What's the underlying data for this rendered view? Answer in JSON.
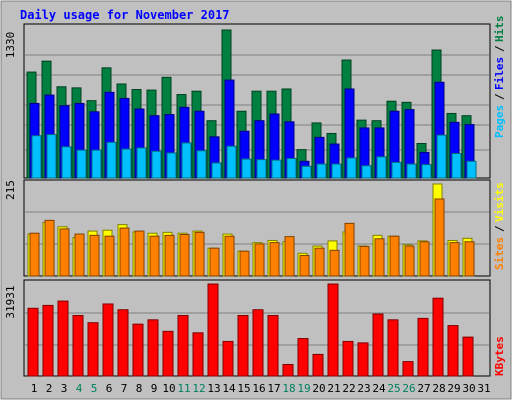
{
  "colors": {
    "frame_bg": "#c0c0c0",
    "title": "#0000ff",
    "hits": "#008040",
    "files": "#0000ff",
    "pages": "#00c0ff",
    "visits": "#ffff00",
    "sites": "#ff8000",
    "kbytes": "#ff0000",
    "weekend_day": "#00805c",
    "weekday": "#000000"
  },
  "chart_data": {
    "type": "bar",
    "title": "Daily usage for November 2017",
    "x": [
      "1",
      "2",
      "3",
      "4",
      "5",
      "6",
      "7",
      "8",
      "9",
      "10",
      "11",
      "12",
      "13",
      "14",
      "15",
      "16",
      "17",
      "18",
      "19",
      "20",
      "21",
      "22",
      "23",
      "24",
      "25",
      "26",
      "27",
      "28",
      "29",
      "30",
      "31"
    ],
    "weekend_days": [
      4,
      5,
      11,
      12,
      18,
      19,
      25,
      26
    ],
    "panels": [
      {
        "name": "hits_files_pages",
        "ymax": 1330,
        "ymax_label": "1330",
        "side_label": [
          "Pages",
          "/",
          "Files",
          "/",
          "Hits"
        ],
        "series": [
          {
            "name": "Hits",
            "values": [
              952,
              1050,
              820,
              810,
              695,
              990,
              845,
              795,
              790,
              905,
              750,
              780,
              515,
              1330,
              600,
              780,
              780,
              800,
              255,
              495,
              400,
              1060,
              520,
              515,
              690,
              680,
              310,
              1150,
              580,
              560,
              0
            ]
          },
          {
            "name": "Files",
            "values": [
              670,
              745,
              650,
              670,
              595,
              770,
              715,
              620,
              560,
              570,
              635,
              600,
              370,
              880,
              420,
              515,
              575,
              505,
              150,
              365,
              305,
              800,
              450,
              450,
              600,
              615,
              230,
              860,
              500,
              480,
              0
            ]
          },
          {
            "name": "Pages",
            "values": [
              380,
              390,
              280,
              250,
              250,
              320,
              260,
              270,
              240,
              225,
              315,
              245,
              135,
              285,
              170,
              165,
              160,
              175,
              105,
              125,
              125,
              180,
              110,
              190,
              140,
              125,
              120,
              385,
              220,
              150,
              0
            ]
          }
        ]
      },
      {
        "name": "visits_sites",
        "ymax": 215,
        "ymax_label": "215",
        "side_label": [
          "Sites",
          "/",
          "Visits"
        ],
        "series": [
          {
            "name": "Visits",
            "values": [
              98,
              125,
              115,
              90,
              105,
              107,
              120,
              103,
              100,
              102,
              100,
              105,
              65,
              98,
              58,
              78,
              83,
              80,
              53,
              70,
              82,
              103,
              70,
              95,
              93,
              73,
              82,
              215,
              83,
              88,
              0
            ]
          },
          {
            "name": "Sites",
            "values": [
              100,
              130,
              110,
              98,
              95,
              93,
              112,
              105,
              93,
              95,
              97,
              102,
              65,
              93,
              58,
              75,
              78,
              92,
              48,
              65,
              60,
              123,
              69,
              87,
              93,
              70,
              80,
              180,
              78,
              80,
              0
            ]
          }
        ]
      },
      {
        "name": "kbytes",
        "ymax": 31931,
        "ymax_label": "31931",
        "side_label": [
          "KBytes"
        ],
        "series": [
          {
            "name": "KBytes",
            "values": [
              23500,
              24500,
              26000,
              21000,
              18500,
              25000,
              23000,
              18000,
              19500,
              15500,
              21000,
              15000,
              31931,
              12000,
              21000,
              23000,
              21000,
              4000,
              13000,
              7500,
              31931,
              12000,
              11500,
              21500,
              19500,
              5000,
              20000,
              27000,
              17500,
              13500,
              0
            ]
          }
        ]
      }
    ]
  }
}
